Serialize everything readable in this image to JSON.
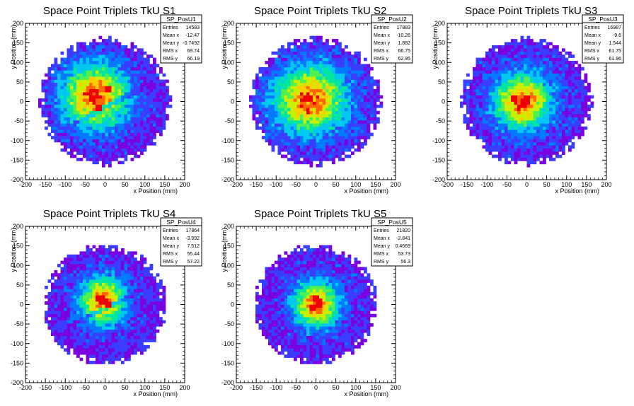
{
  "chart_data": [
    {
      "type": "heatmap",
      "title": "Space Point Triplets TkU S1",
      "xlabel": "x Position (mm)",
      "ylabel": "y Position (mm)",
      "xlim": [
        -200,
        200
      ],
      "ylim": [
        -200,
        200
      ],
      "xticks": [
        "-200",
        "-150",
        "-100",
        "-50",
        "0",
        "50",
        "100",
        "150",
        "200"
      ],
      "yticks": [
        "-200",
        "-150",
        "-100",
        "-50",
        "0",
        "50",
        "100",
        "150",
        "200"
      ],
      "stats": {
        "name": "SP_PosU1",
        "rows": [
          [
            "Entries",
            "14583"
          ],
          [
            "Mean x",
            "-12.47"
          ],
          [
            "Mean y",
            "-0.7492"
          ],
          [
            "RMS x",
            "69.74"
          ],
          [
            "RMS y",
            "66.19"
          ]
        ]
      },
      "distribution": {
        "center": [
          -25,
          15
        ],
        "sigma": [
          55,
          55
        ],
        "radius": 165,
        "hot_cells": [
          [
            -50,
            20
          ],
          [
            -30,
            10
          ],
          [
            10,
            30
          ],
          [
            -15,
            -15
          ]
        ],
        "cold_band": {
          "slope": 0.55,
          "intercept": -15,
          "width": 7
        }
      }
    },
    {
      "type": "heatmap",
      "title": "Space Point Triplets TkU S2",
      "xlabel": "x Position (mm)",
      "ylabel": "y Position (mm)",
      "xlim": [
        -200,
        200
      ],
      "ylim": [
        -200,
        200
      ],
      "xticks": [
        "-200",
        "-150",
        "-100",
        "-50",
        "0",
        "50",
        "100",
        "150",
        "200"
      ],
      "yticks": [
        "-200",
        "-150",
        "-100",
        "-50",
        "0",
        "50",
        "100",
        "150",
        "200"
      ],
      "stats": {
        "name": "SP_PosU2",
        "rows": [
          [
            "Entries",
            "17883"
          ],
          [
            "Mean x",
            "-10.26"
          ],
          [
            "Mean y",
            "1.882"
          ],
          [
            "RMS x",
            "66.75"
          ],
          [
            "RMS y",
            "62.95"
          ]
        ]
      },
      "distribution": {
        "center": [
          -15,
          5
        ],
        "sigma": [
          60,
          58
        ],
        "radius": 165,
        "hot_cells": [
          [
            -25,
            10
          ],
          [
            -15,
            10
          ],
          [
            -20,
            -25
          ]
        ]
      }
    },
    {
      "type": "heatmap",
      "title": "Space Point Triplets TkU S3",
      "xlabel": "x Position (mm)",
      "ylabel": "y Position (mm)",
      "xlim": [
        -200,
        200
      ],
      "ylim": [
        -200,
        200
      ],
      "xticks": [
        "-200",
        "-150",
        "-100",
        "-50",
        "0",
        "50",
        "100",
        "150",
        "200"
      ],
      "yticks": [
        "-200",
        "-150",
        "-100",
        "-50",
        "0",
        "50",
        "100",
        "150",
        "200"
      ],
      "stats": {
        "name": "SP_PosU3",
        "rows": [
          [
            "Entries",
            "16987"
          ],
          [
            "Mean x",
            "-9.6"
          ],
          [
            "Mean y",
            "1.544"
          ],
          [
            "RMS x",
            "61.75"
          ],
          [
            "RMS y",
            "61.96"
          ]
        ]
      },
      "distribution": {
        "center": [
          -10,
          0
        ],
        "sigma": [
          48,
          48
        ],
        "radius": 165,
        "hot_cells": [
          [
            -30,
            5
          ],
          [
            0,
            10
          ],
          [
            -20,
            -15
          ],
          [
            -5,
            -5
          ]
        ]
      }
    },
    {
      "type": "heatmap",
      "title": "Space Point Triplets TkU S4",
      "xlabel": "x Position (mm)",
      "ylabel": "y Position (mm)",
      "xlim": [
        -200,
        200
      ],
      "ylim": [
        -200,
        200
      ],
      "xticks": [
        "-200",
        "-150",
        "-100",
        "-50",
        "0",
        "50",
        "100",
        "150",
        "200"
      ],
      "yticks": [
        "-200",
        "-150",
        "-100",
        "-50",
        "0",
        "50",
        "100",
        "150",
        "200"
      ],
      "stats": {
        "name": "SP_PosU4",
        "rows": [
          [
            "Entries",
            "17864"
          ],
          [
            "Mean x",
            "-3.992"
          ],
          [
            "Mean y",
            "7.512"
          ],
          [
            "RMS x",
            "55.44"
          ],
          [
            "RMS y",
            "57.22"
          ]
        ]
      },
      "distribution": {
        "center": [
          -5,
          10
        ],
        "sigma": [
          38,
          40
        ],
        "radius": 155,
        "hot_cells": [
          [
            -5,
            5
          ],
          [
            5,
            0
          ],
          [
            -15,
            15
          ]
        ],
        "cold_band": {
          "slope": 0.5,
          "intercept": -10,
          "width": 6
        }
      }
    },
    {
      "type": "heatmap",
      "title": "Space Point Triplets TkU S5",
      "xlabel": "x Position (mm)",
      "ylabel": "y Position (mm)",
      "xlim": [
        -200,
        200
      ],
      "ylim": [
        -200,
        200
      ],
      "xticks": [
        "-200",
        "-150",
        "-100",
        "-50",
        "0",
        "50",
        "100",
        "150",
        "200"
      ],
      "yticks": [
        "-200",
        "-150",
        "-100",
        "-50",
        "0",
        "50",
        "100",
        "150",
        "200"
      ],
      "stats": {
        "name": "SP_PosU5",
        "rows": [
          [
            "Entries",
            "21820"
          ],
          [
            "Mean x",
            "-2.841"
          ],
          [
            "Mean y",
            "0.4669"
          ],
          [
            "RMS x",
            "53.73"
          ],
          [
            "RMS y",
            "56.3"
          ]
        ]
      },
      "distribution": {
        "center": [
          0,
          0
        ],
        "sigma": [
          38,
          40
        ],
        "radius": 155,
        "hot_cells": [
          [
            5,
            10
          ],
          [
            10,
            0
          ],
          [
            -5,
            -5
          ],
          [
            0,
            15
          ]
        ]
      }
    }
  ],
  "colors": {
    "palette": [
      "#7a00e0",
      "#3a3cff",
      "#007bff",
      "#00c8f0",
      "#00e6a0",
      "#50f050",
      "#c8f000",
      "#ffcc00",
      "#ff6600",
      "#ee0000"
    ],
    "frame": "#000000",
    "background": "#ffffff"
  }
}
